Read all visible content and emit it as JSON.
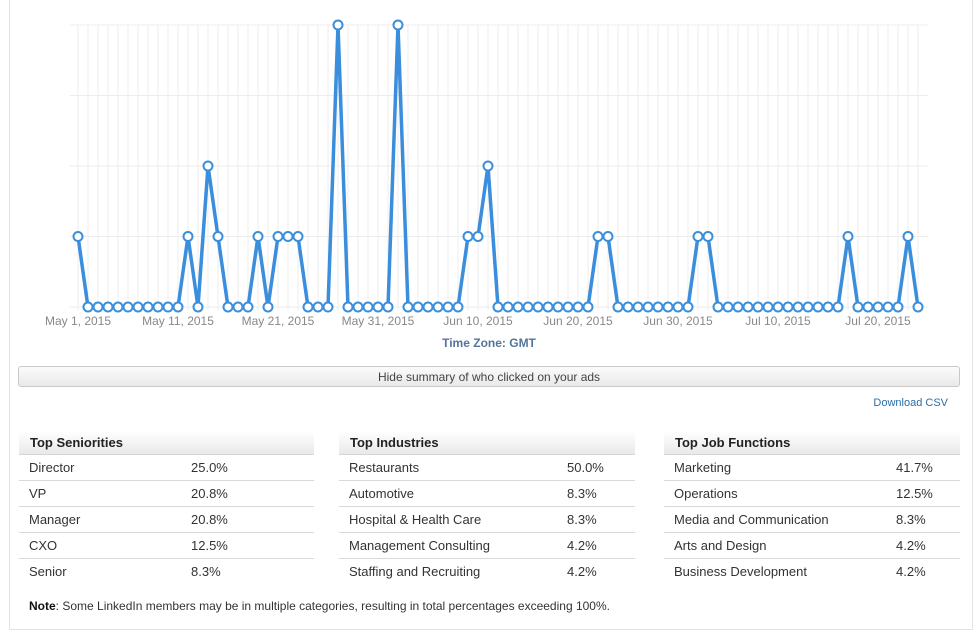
{
  "colors": {
    "line": "#3a8edc",
    "marker_fill": "#ffffff",
    "grid": "#ececec",
    "axis_text": "#888888",
    "timezone_text": "#54759a"
  },
  "chart_data": {
    "type": "line",
    "xlabel": "Time Zone: GMT",
    "ylabel": "",
    "x_range": [
      "2015-05-01",
      "2015-07-24"
    ],
    "ylim": [
      0,
      4
    ],
    "grid": true,
    "x_ticks": [
      "May 1, 2015",
      "May 11, 2015",
      "May 21, 2015",
      "May 31, 2015",
      "Jun 10, 2015",
      "Jun 20, 2015",
      "Jun 30, 2015",
      "Jul 10, 2015",
      "Jul 20, 2015"
    ],
    "series": [
      {
        "values": [
          1,
          0,
          0,
          0,
          0,
          0,
          0,
          0,
          0,
          0,
          0,
          1,
          0,
          2,
          1,
          0,
          0,
          0,
          1,
          0,
          1,
          1,
          1,
          0,
          0,
          0,
          4,
          0,
          0,
          0,
          0,
          0,
          4,
          0,
          0,
          0,
          0,
          0,
          0,
          1,
          1,
          2,
          0,
          0,
          0,
          0,
          0,
          0,
          0,
          0,
          0,
          0,
          1,
          1,
          0,
          0,
          0,
          0,
          0,
          0,
          0,
          0,
          1,
          1,
          0,
          0,
          0,
          0,
          0,
          0,
          0,
          0,
          0,
          0,
          0,
          0,
          0,
          1,
          0,
          0,
          0,
          0,
          0,
          1,
          0
        ]
      }
    ]
  },
  "timezone_label": "Time Zone: GMT",
  "toggle_label": "Hide summary of who clicked on your ads",
  "download_label": "Download CSV",
  "tables": [
    {
      "title": "Top Seniorities",
      "rows": [
        {
          "label": "Director",
          "value": "25.0%"
        },
        {
          "label": "VP",
          "value": "20.8%"
        },
        {
          "label": "Manager",
          "value": "20.8%"
        },
        {
          "label": "CXO",
          "value": "12.5%"
        },
        {
          "label": "Senior",
          "value": "8.3%"
        }
      ]
    },
    {
      "title": "Top Industries",
      "rows": [
        {
          "label": "Restaurants",
          "value": "50.0%"
        },
        {
          "label": "Automotive",
          "value": "8.3%"
        },
        {
          "label": "Hospital & Health Care",
          "value": "8.3%"
        },
        {
          "label": "Management Consulting",
          "value": "4.2%"
        },
        {
          "label": "Staffing and Recruiting",
          "value": "4.2%"
        }
      ]
    },
    {
      "title": "Top Job Functions",
      "rows": [
        {
          "label": "Marketing",
          "value": "41.7%"
        },
        {
          "label": "Operations",
          "value": "12.5%"
        },
        {
          "label": "Media and Communication",
          "value": "8.3%"
        },
        {
          "label": "Arts and Design",
          "value": "4.2%"
        },
        {
          "label": "Business Development",
          "value": "4.2%"
        }
      ]
    }
  ],
  "note": {
    "bold": "Note",
    "text": ": Some LinkedIn members may be in multiple categories, resulting in total percentages exceeding 100%."
  }
}
